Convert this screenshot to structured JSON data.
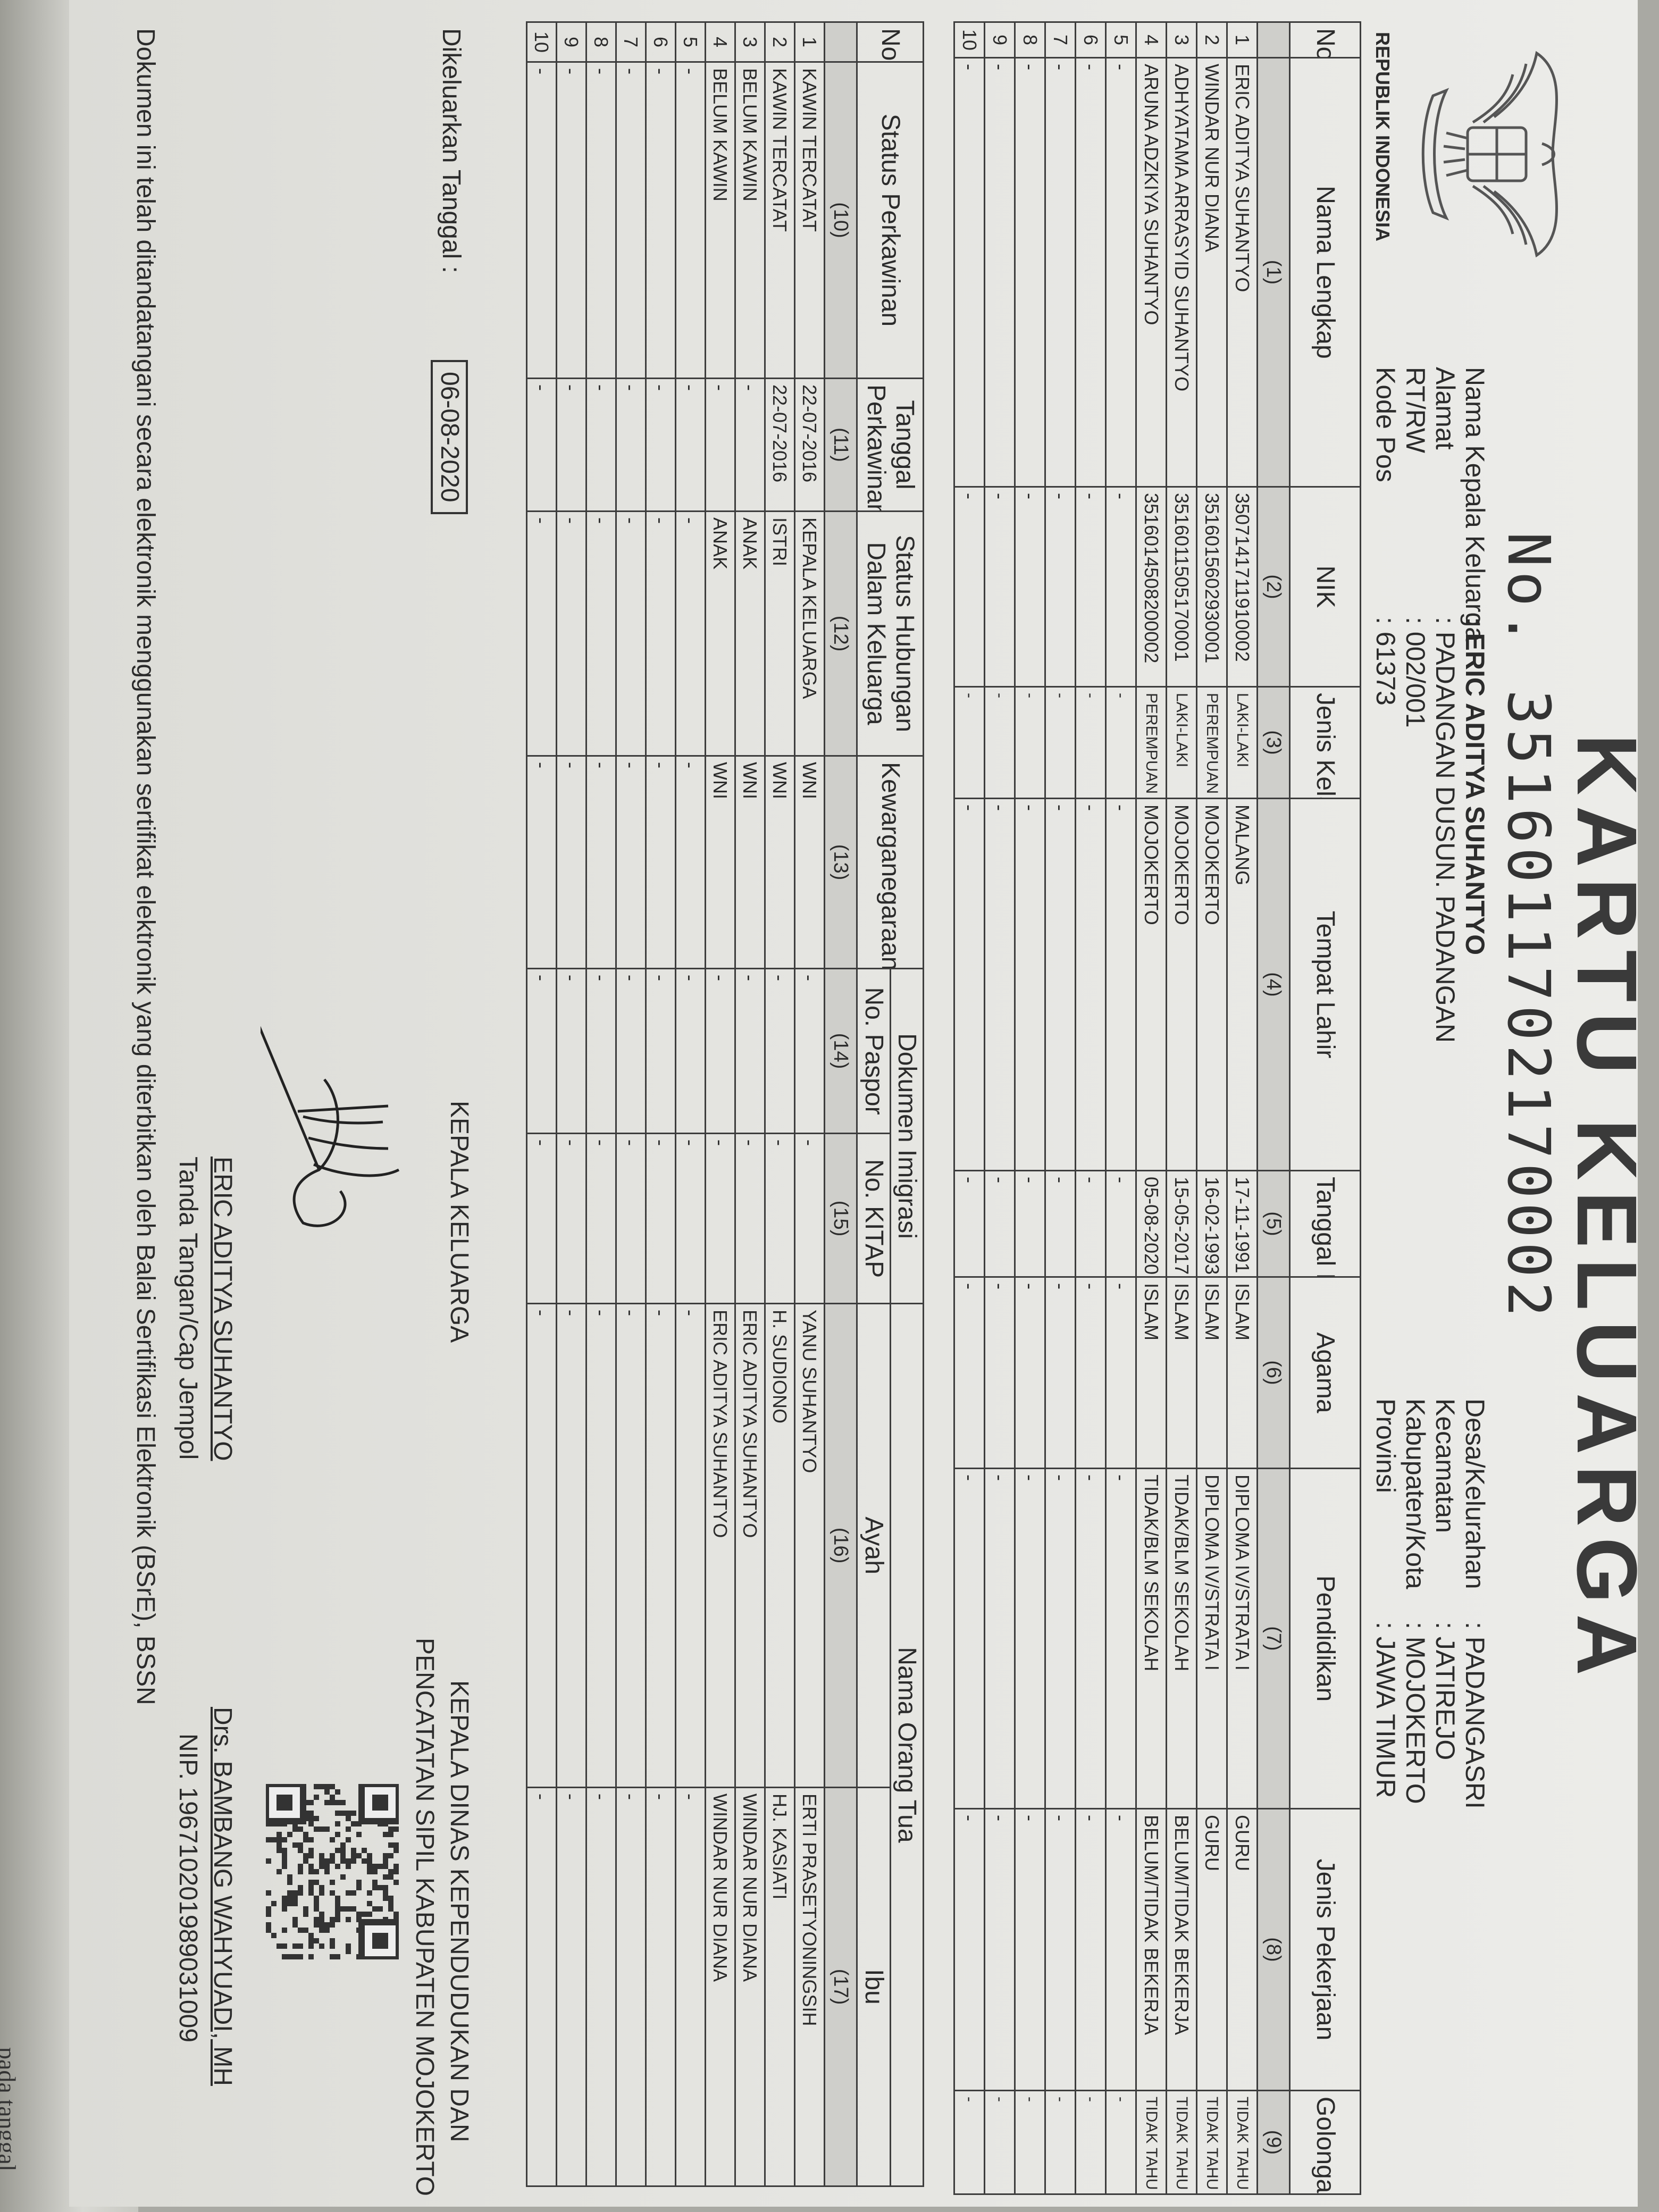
{
  "document": {
    "title": "KARTU KELUARGA",
    "number": "No. 3516011702170002",
    "emblem_caption": "REPUBLIK INDONESIA",
    "head_info": [
      {
        "label": "Nama Kepala Keluarga",
        "value": ": ERIC ADITYA SUHANTYO"
      },
      {
        "label": "Alamat",
        "value": ": PADANGAN DUSUN. PADANGAN"
      },
      {
        "label": "RT/RW",
        "value": ": 002/001"
      },
      {
        "label": "Kode Pos",
        "value": ": 61373"
      }
    ],
    "region_info": [
      {
        "label": "Desa/Kelurahan",
        "value": ": PADANGASRI"
      },
      {
        "label": "Kecamatan",
        "value": ": JATIREJO"
      },
      {
        "label": "Kabupaten/Kota",
        "value": ": MOJOKERTO"
      },
      {
        "label": "Provinsi",
        "value": ": JAWA TIMUR"
      }
    ]
  },
  "table1": {
    "headers": [
      "No",
      "Nama Lengkap",
      "NIK",
      "Jenis Kelamin",
      "Tempat Lahir",
      "Tanggal Lahir",
      "Agama",
      "Pendidikan",
      "Jenis Pekerjaan",
      "Golongan Darah"
    ],
    "numbers": [
      "",
      "(1)",
      "(2)",
      "(3)",
      "(4)",
      "(5)",
      "(6)",
      "(7)",
      "(8)",
      "(9)"
    ],
    "rows": [
      [
        "1",
        "ERIC ADITYA SUHANTYO",
        "3507141711910002",
        "LAKI-LAKI",
        "MALANG",
        "17-11-1991",
        "ISLAM",
        "DIPLOMA IV/STRATA I",
        "GURU",
        "TIDAK TAHU"
      ],
      [
        "2",
        "WINDAR NUR DIANA",
        "3516015602930001",
        "PEREMPUAN",
        "MOJOKERTO",
        "16-02-1993",
        "ISLAM",
        "DIPLOMA IV/STRATA I",
        "GURU",
        "TIDAK TAHU"
      ],
      [
        "3",
        "ADHYATAMA ARRASYID SUHANTYO",
        "3516011505170001",
        "LAKI-LAKI",
        "MOJOKERTO",
        "15-05-2017",
        "ISLAM",
        "TIDAK/BLM SEKOLAH",
        "BELUM/TIDAK BEKERJA",
        "TIDAK TAHU"
      ],
      [
        "4",
        "ARUNA ADZKIYA SUHANTYO",
        "3516014508200002",
        "PEREMPUAN",
        "MOJOKERTO",
        "05-08-2020",
        "ISLAM",
        "TIDAK/BLM SEKOLAH",
        "BELUM/TIDAK BEKERJA",
        "TIDAK TAHU"
      ],
      [
        "5",
        "-",
        "-",
        "-",
        "-",
        "-",
        "-",
        "-",
        "-",
        "-"
      ],
      [
        "6",
        "-",
        "-",
        "-",
        "-",
        "-",
        "-",
        "-",
        "-",
        "-"
      ],
      [
        "7",
        "-",
        "-",
        "-",
        "-",
        "-",
        "-",
        "-",
        "-",
        "-"
      ],
      [
        "8",
        "-",
        "-",
        "-",
        "-",
        "-",
        "-",
        "-",
        "-",
        "-"
      ],
      [
        "9",
        "-",
        "-",
        "-",
        "-",
        "-",
        "-",
        "-",
        "-",
        "-"
      ],
      [
        "10",
        "-",
        "-",
        "-",
        "-",
        "-",
        "-",
        "-",
        "-",
        "-"
      ]
    ]
  },
  "table2": {
    "headers": [
      "No.",
      "Status Perkawinan",
      "Tanggal Perkawinan",
      "Status Hubungan Dalam Keluarga",
      "Kewarganegaraan"
    ],
    "group_immigration": "Dokumen Imigrasi",
    "group_parents": "Nama Orang Tua",
    "sub_headers": [
      "No. Paspor",
      "No. KITAP",
      "Ayah",
      "Ibu"
    ],
    "numbers": [
      "",
      "(10)",
      "(11)",
      "(12)",
      "(13)",
      "(14)",
      "(15)",
      "(16)",
      "(17)"
    ],
    "rows": [
      [
        "1",
        "KAWIN TERCATAT",
        "22-07-2016",
        "KEPALA KELUARGA",
        "WNI",
        "-",
        "-",
        "YANU SUHANTYO",
        "ERTI PRASETYONINGSIH"
      ],
      [
        "2",
        "KAWIN TERCATAT",
        "22-07-2016",
        "ISTRI",
        "WNI",
        "-",
        "-",
        "H. SUDIONO",
        "HJ. KASIATI"
      ],
      [
        "3",
        "BELUM KAWIN",
        "-",
        "ANAK",
        "WNI",
        "-",
        "-",
        "ERIC ADITYA SUHANTYO",
        "WINDAR NUR DIANA"
      ],
      [
        "4",
        "BELUM KAWIN",
        "-",
        "ANAK",
        "WNI",
        "-",
        "-",
        "ERIC ADITYA SUHANTYO",
        "WINDAR NUR DIANA"
      ],
      [
        "5",
        "-",
        "-",
        "-",
        "-",
        "-",
        "-",
        "-",
        "-"
      ],
      [
        "6",
        "-",
        "-",
        "-",
        "-",
        "-",
        "-",
        "-",
        "-"
      ],
      [
        "7",
        "-",
        "-",
        "-",
        "-",
        "-",
        "-",
        "-",
        "-"
      ],
      [
        "8",
        "-",
        "-",
        "-",
        "-",
        "-",
        "-",
        "-",
        "-"
      ],
      [
        "9",
        "-",
        "-",
        "-",
        "-",
        "-",
        "-",
        "-",
        "-"
      ],
      [
        "10",
        "-",
        "-",
        "-",
        "-",
        "-",
        "-",
        "-",
        "-"
      ]
    ]
  },
  "footer": {
    "issued_label": "Dikeluarkan Tanggal :",
    "issued_date": "06-08-2020",
    "head_title": "KEPALA KELUARGA",
    "head_name": "ERIC ADITYA SUHANTYO",
    "head_sign_caption": "Tanda Tangan/Cap Jempol",
    "office_line1": "KEPALA DINAS KEPENDUDUKAN DAN",
    "office_line2": "PENCATATAN SIPIL KABUPATEN MOJOKERTO",
    "official_name": "Drs. BAMBANG WAHYUADI, MH",
    "official_nip": "NIP. 196710201989031009",
    "disclaimer": "Dokumen ini telah ditandatangani secara elektronik menggunakan sertifikat elektronik yang diterbitkan oleh Balai Sertifikasi Elektronik (BSrE), BSSN"
  },
  "background": {
    "scrap_text": "pada  tanggal"
  }
}
